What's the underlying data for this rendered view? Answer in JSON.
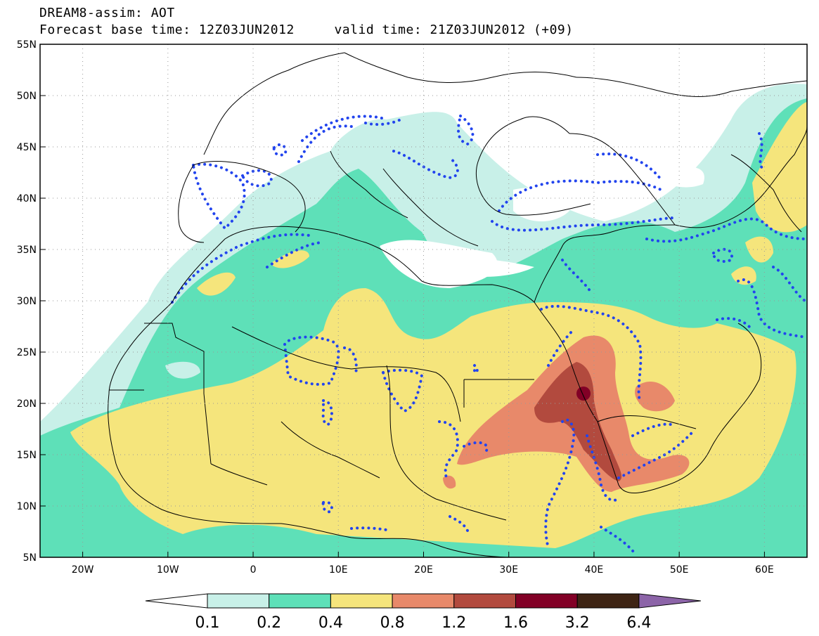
{
  "header": {
    "title_line1": "DREAM8-assim: AOT",
    "title_line2": "Forecast base time: 12Z03JUN2012     valid time: 21Z03JUN2012 (+09)"
  },
  "map": {
    "lon_range": [
      -25,
      65
    ],
    "lat_range": [
      5,
      55
    ],
    "lat_ticks": [
      {
        "value": 55,
        "label": "55N"
      },
      {
        "value": 50,
        "label": "50N"
      },
      {
        "value": 45,
        "label": "45N"
      },
      {
        "value": 40,
        "label": "40N"
      },
      {
        "value": 35,
        "label": "35N"
      },
      {
        "value": 30,
        "label": "30N"
      },
      {
        "value": 25,
        "label": "25N"
      },
      {
        "value": 20,
        "label": "20N"
      },
      {
        "value": 15,
        "label": "15N"
      },
      {
        "value": 10,
        "label": "10N"
      },
      {
        "value": 5,
        "label": "5N"
      }
    ],
    "lon_ticks": [
      {
        "value": -20,
        "label": "20W"
      },
      {
        "value": -10,
        "label": "10W"
      },
      {
        "value": 0,
        "label": "0"
      },
      {
        "value": 10,
        "label": "10E"
      },
      {
        "value": 20,
        "label": "20E"
      },
      {
        "value": 30,
        "label": "30E"
      },
      {
        "value": 40,
        "label": "40E"
      },
      {
        "value": 50,
        "label": "50E"
      },
      {
        "value": 60,
        "label": "60E"
      }
    ],
    "grid": "dotted"
  },
  "colorbar": {
    "labels": [
      "0.1",
      "0.2",
      "0.4",
      "0.8",
      "1.2",
      "1.6",
      "3.2",
      "6.4"
    ],
    "colors": [
      "#ffffff",
      "#c8f0e8",
      "#5ee0b8",
      "#f5e57c",
      "#e8896a",
      "#b24a3e",
      "#820026",
      "#3e2414",
      "#8c64a8"
    ]
  },
  "legend_colors": {
    "level_0_1": "#c8f0e8",
    "level_0_2": "#5ee0b8",
    "level_0_4": "#f5e57c",
    "level_0_8": "#e8896a",
    "level_1_2": "#b24a3e",
    "level_1_6": "#820026",
    "contour_dots": "#2244ee"
  }
}
